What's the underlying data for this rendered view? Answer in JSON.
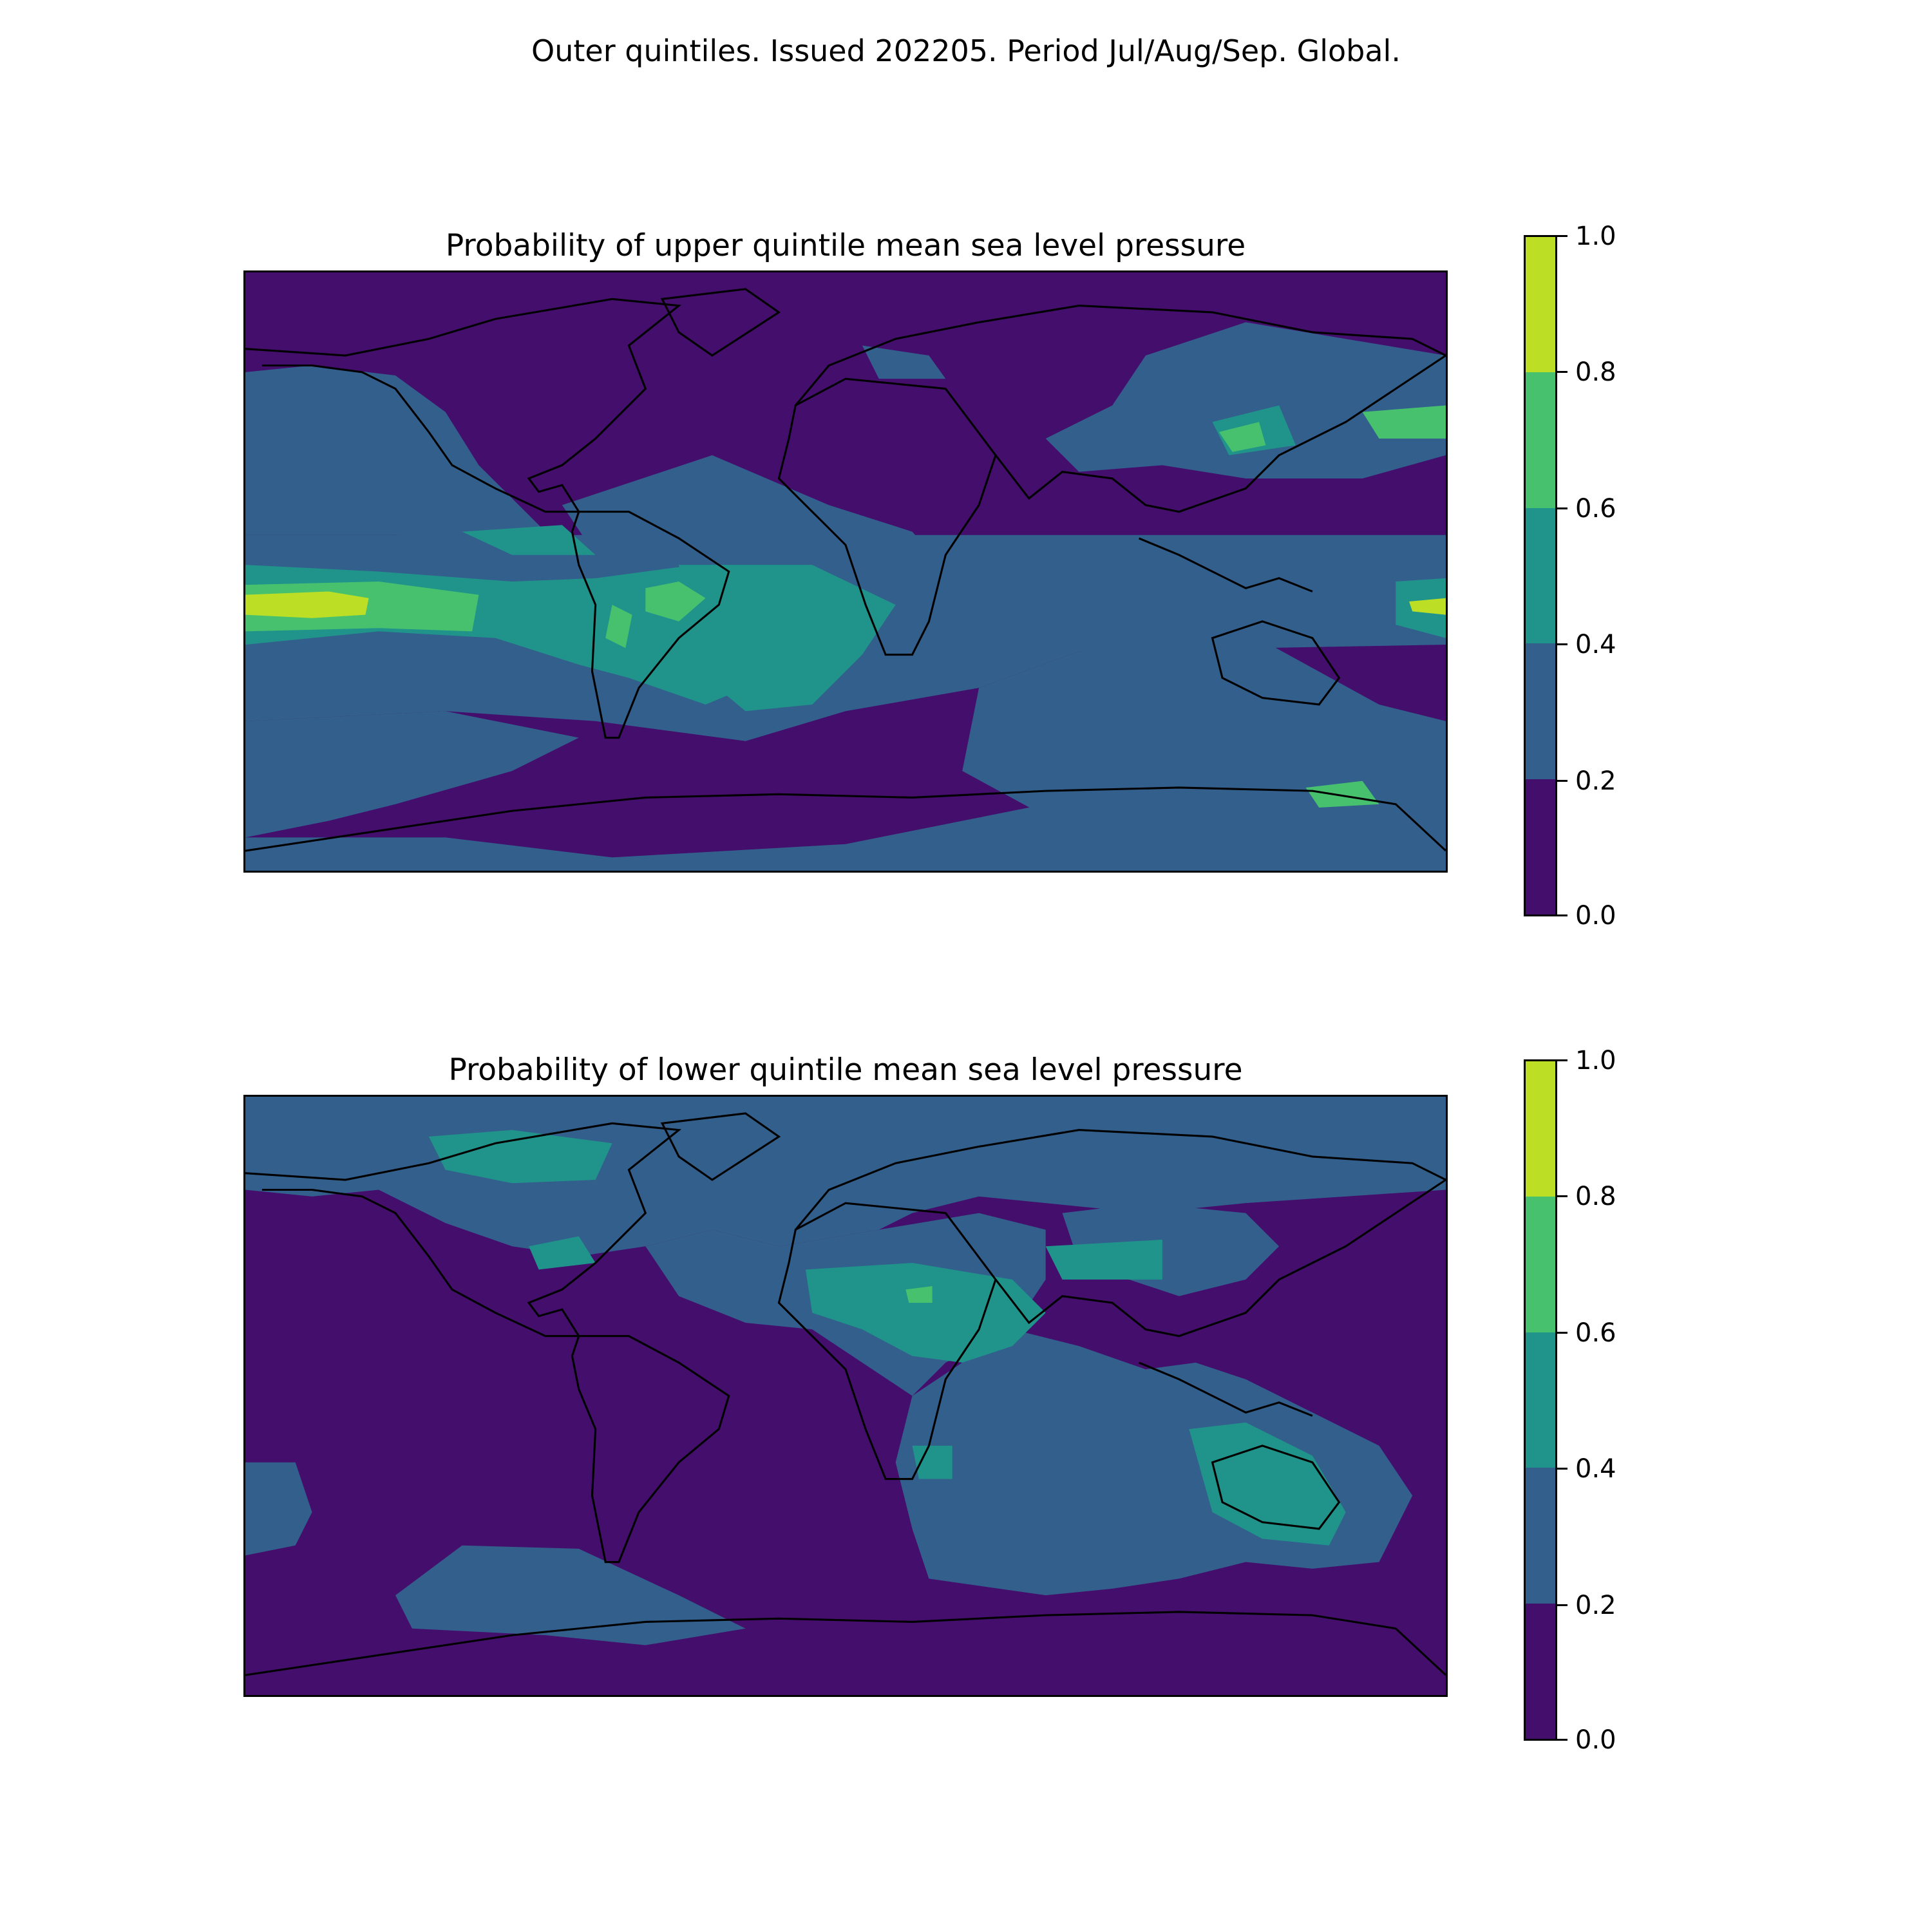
{
  "suptitle": "Outer quintiles. Issued 202205. Period Jul/Aug/Sep. Global.",
  "colormap": {
    "name": "viridis",
    "levels": [
      0.0,
      0.2,
      0.4,
      0.6,
      0.8,
      1.0
    ],
    "colors": [
      "#440e6c",
      "#335f8c",
      "#20948b",
      "#48c16e",
      "#bcdf26"
    ],
    "tick_labels": [
      "0.0",
      "0.2",
      "0.4",
      "0.6",
      "0.8",
      "1.0"
    ]
  },
  "panels": [
    {
      "title": "Probability of upper quintile mean sea level pressure",
      "background_level": "0.0-0.2",
      "highlights": [
        "Equatorial eastern Pacific 0.8-1.0",
        "Tropical South America 0.4-0.6",
        "South Atlantic 0.4-0.6",
        "Southern Ocean 0.2-0.4"
      ]
    },
    {
      "title": "Probability of lower quintile mean sea level pressure",
      "background_level": "0.0-0.2",
      "highlights": [
        "North Africa / Mediterranean 0.4-0.6",
        "Australia 0.4-0.6",
        "Indian Ocean 0.2-0.4",
        "Arctic Canada 0.2-0.4"
      ]
    }
  ]
}
